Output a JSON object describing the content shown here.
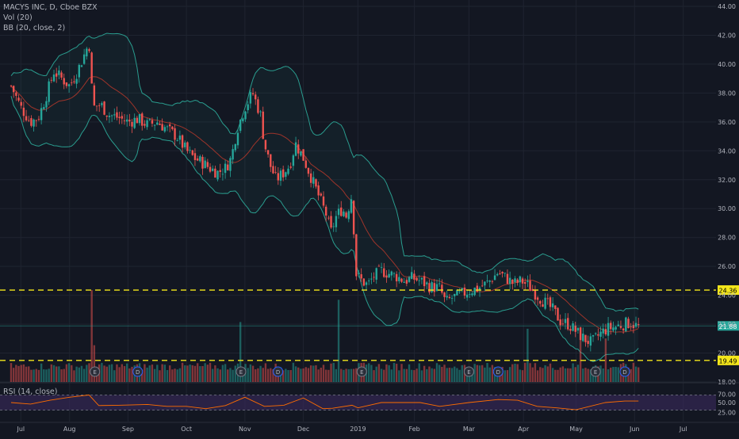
{
  "legend": {
    "title": "MACYS INC, D, Cboe BZX",
    "volume": "Vol (20)",
    "bollinger": "BB (20, close, 2)",
    "rsi": "RSI (14, close)"
  },
  "colors": {
    "background": "#131722",
    "up": "#26a69a",
    "down": "#ef5350",
    "bb_band": "#2a9d8f",
    "bb_basis": "#c0392b",
    "hline": "#f5e71b",
    "rsi_line": "#ff6d00",
    "rsi_fill": "#3b2a5e"
  },
  "chart_data": {
    "type": "candlestick",
    "title": "MACYS INC, D, Cboe BZX",
    "price_axis": {
      "min": 18,
      "max": 44,
      "ticks": [
        "44.00",
        "42.00",
        "40.00",
        "38.00",
        "36.00",
        "34.00",
        "32.00",
        "30.00",
        "28.00",
        "26.00",
        "24.00",
        "22.00",
        "20.00",
        "18.00"
      ]
    },
    "time_axis": {
      "labels": [
        "Jul",
        "Aug",
        "Sep",
        "Oct",
        "Nov",
        "Dec",
        "2019",
        "Feb",
        "Mar",
        "Apr",
        "May",
        "Jun",
        "Jul"
      ],
      "label_positions": [
        0.5,
        3.0,
        6.0,
        9.0,
        12.0,
        15.0,
        17.8,
        20.7,
        23.5,
        26.3,
        29.0,
        32.0,
        34.5
      ],
      "span_months": [
        0,
        36
      ]
    },
    "horizontal_lines": [
      {
        "value": 24.36,
        "label": "24.36"
      },
      {
        "value": 19.49,
        "label": "19.49"
      }
    ],
    "last_price": {
      "value": 21.88,
      "label": "21.88"
    },
    "price_path": [
      [
        0,
        38.5
      ],
      [
        0.5,
        37.0
      ],
      [
        1.0,
        36.0
      ],
      [
        1.4,
        36.3
      ],
      [
        1.8,
        37.8
      ],
      [
        2.2,
        39.5
      ],
      [
        2.6,
        39.0
      ],
      [
        3.0,
        38.5
      ],
      [
        3.4,
        39.5
      ],
      [
        3.8,
        40.8
      ],
      [
        4.0,
        41.5
      ],
      [
        4.2,
        37.0
      ],
      [
        4.6,
        37.2
      ],
      [
        5.0,
        36.5
      ],
      [
        5.5,
        36.3
      ],
      [
        6.0,
        36.0
      ],
      [
        6.5,
        36.2
      ],
      [
        7.0,
        35.8
      ],
      [
        7.5,
        36.0
      ],
      [
        8.0,
        35.5
      ],
      [
        8.5,
        35.0
      ],
      [
        9.0,
        34.0
      ],
      [
        9.4,
        33.5
      ],
      [
        9.8,
        33.2
      ],
      [
        10.2,
        32.8
      ],
      [
        10.6,
        32.5
      ],
      [
        11.0,
        32.8
      ],
      [
        11.3,
        33.5
      ],
      [
        11.6,
        35.5
      ],
      [
        12.0,
        37.0
      ],
      [
        12.4,
        38.0
      ],
      [
        12.8,
        36.5
      ],
      [
        13.0,
        34.5
      ],
      [
        13.3,
        33.0
      ],
      [
        13.6,
        32.0
      ],
      [
        14.0,
        32.5
      ],
      [
        14.3,
        33.0
      ],
      [
        14.6,
        34.5
      ],
      [
        15.0,
        33.5
      ],
      [
        15.3,
        32.5
      ],
      [
        15.6,
        31.5
      ],
      [
        15.9,
        30.5
      ],
      [
        16.2,
        29.5
      ],
      [
        16.4,
        28.3
      ],
      [
        16.7,
        29.5
      ],
      [
        17.0,
        30.0
      ],
      [
        17.2,
        29.5
      ],
      [
        17.5,
        31.0
      ],
      [
        17.7,
        25.5
      ],
      [
        18.0,
        25.0
      ],
      [
        18.3,
        24.7
      ],
      [
        18.6,
        25.3
      ],
      [
        19.0,
        25.7
      ],
      [
        19.4,
        25.5
      ],
      [
        19.8,
        25.3
      ],
      [
        20.2,
        25.0
      ],
      [
        20.6,
        25.2
      ],
      [
        21.0,
        25.0
      ],
      [
        21.5,
        24.6
      ],
      [
        22.0,
        24.5
      ],
      [
        22.3,
        23.5
      ],
      [
        22.6,
        23.8
      ],
      [
        23.0,
        24.0
      ],
      [
        23.5,
        24.3
      ],
      [
        24.0,
        24.5
      ],
      [
        24.5,
        24.9
      ],
      [
        25.0,
        25.6
      ],
      [
        25.4,
        25.2
      ],
      [
        25.8,
        24.8
      ],
      [
        26.2,
        25.0
      ],
      [
        26.6,
        24.6
      ],
      [
        27.0,
        24.0
      ],
      [
        27.4,
        23.5
      ],
      [
        27.8,
        23.0
      ],
      [
        28.2,
        22.2
      ],
      [
        28.6,
        22.0
      ],
      [
        29.0,
        21.5
      ],
      [
        29.4,
        21.0
      ],
      [
        29.8,
        20.7
      ],
      [
        30.2,
        21.3
      ],
      [
        30.6,
        21.7
      ],
      [
        31.0,
        21.8
      ],
      [
        31.4,
        22.0
      ],
      [
        31.8,
        22.1
      ],
      [
        32.2,
        21.8
      ]
    ],
    "volume_spikes": [
      [
        4.1,
        0.95
      ],
      [
        16.8,
        0.85
      ],
      [
        11.8,
        0.62
      ],
      [
        4.3,
        0.38
      ],
      [
        26.5,
        0.55
      ],
      [
        29.2,
        0.5
      ],
      [
        30.5,
        0.45
      ]
    ],
    "earnings_markers": [
      {
        "label": "E",
        "x": 4.3
      },
      {
        "label": "D",
        "x": 6.5
      },
      {
        "label": "E",
        "x": 11.8
      },
      {
        "label": "D",
        "x": 13.7
      },
      {
        "label": "E",
        "x": 18.0
      },
      {
        "label": "E",
        "x": 23.5
      },
      {
        "label": "D",
        "x": 25.0
      },
      {
        "label": "E",
        "x": 30.0
      },
      {
        "label": "D",
        "x": 31.5
      }
    ],
    "rsi": {
      "levels": [
        70,
        30
      ],
      "tick_labels": [
        "70.00",
        "50.00",
        "25.00"
      ],
      "path": [
        [
          0,
          52
        ],
        [
          1,
          44
        ],
        [
          2,
          58
        ],
        [
          3,
          62
        ],
        [
          4,
          72
        ],
        [
          4.5,
          40
        ],
        [
          5.5,
          45
        ],
        [
          7,
          43
        ],
        [
          8,
          42
        ],
        [
          9,
          38
        ],
        [
          10,
          36
        ],
        [
          11,
          40
        ],
        [
          12,
          66
        ],
        [
          13,
          38
        ],
        [
          14,
          45
        ],
        [
          15,
          60
        ],
        [
          16,
          36
        ],
        [
          16.5,
          33
        ],
        [
          17.5,
          45
        ],
        [
          17.8,
          34
        ],
        [
          19,
          52
        ],
        [
          21,
          48
        ],
        [
          22,
          42
        ],
        [
          23.5,
          48
        ],
        [
          25,
          60
        ],
        [
          26,
          54
        ],
        [
          27,
          42
        ],
        [
          28,
          34
        ],
        [
          29,
          33
        ],
        [
          30.5,
          48
        ],
        [
          31.5,
          56
        ],
        [
          32.2,
          52
        ]
      ]
    }
  }
}
